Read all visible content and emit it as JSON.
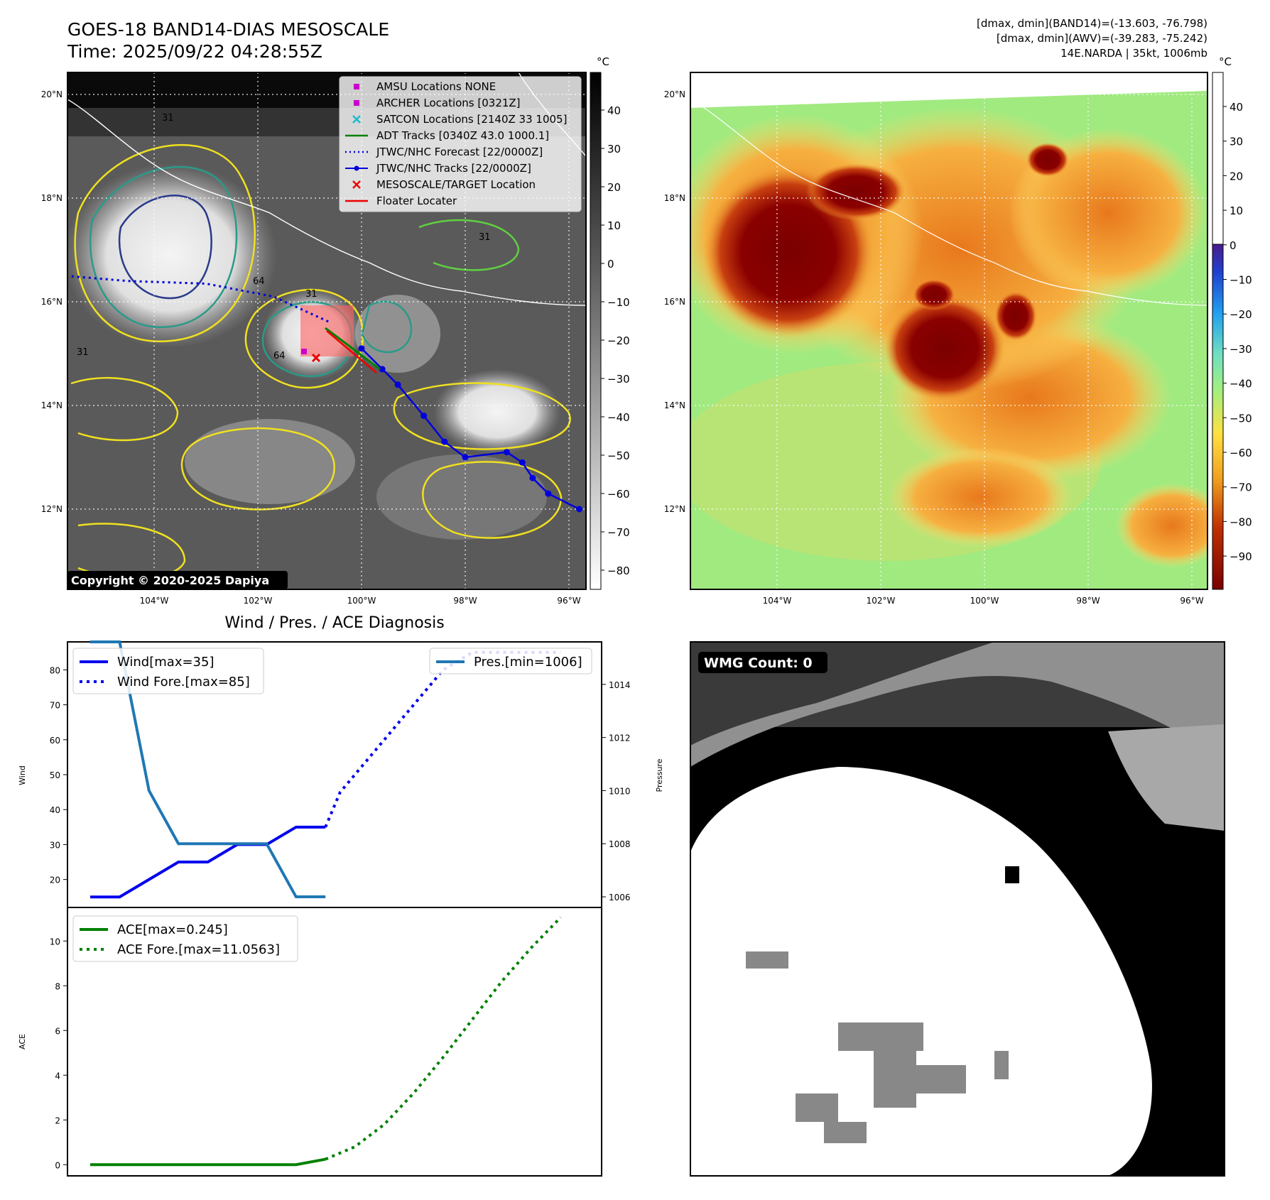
{
  "header": {
    "title": "GOES-18 BAND14-DIAS MESOSCALE",
    "time": "Time: 2025/09/22 04:28:55Z",
    "info_line1": "[dmax, dmin](BAND14)=(-13.603, -76.798)",
    "info_line2": "[dmax, dmin](AWV)=(-39.283, -75.242)",
    "info_line3": "14E.NARDA | 35kt, 1006mb",
    "copyright": "Copyright © 2020-2025 Dapiya"
  },
  "map": {
    "lat_labels": [
      "20°N",
      "18°N",
      "16°N",
      "14°N",
      "12°N"
    ],
    "lon_labels": [
      "104°W",
      "102°W",
      "100°W",
      "98°W",
      "96°W"
    ],
    "unit": "°C",
    "colorbar_left_ticks": [
      "40",
      "30",
      "20",
      "10",
      "0",
      "−10",
      "−20",
      "−30",
      "−40",
      "−50",
      "−60",
      "−70",
      "−80"
    ],
    "colorbar_right_ticks": [
      "40",
      "30",
      "20",
      "10",
      "0",
      "−10",
      "−20",
      "−30",
      "−40",
      "−50",
      "−60",
      "−70",
      "−80",
      "−90"
    ],
    "legend": [
      {
        "label": "AMSU Locations NONE",
        "marker": "square",
        "color": "#cc00cc"
      },
      {
        "label": "ARCHER Locations [0321Z]",
        "marker": "square",
        "color": "#cc00cc"
      },
      {
        "label": "SATCON Locations [2140Z 33 1005]",
        "marker": "x",
        "color": "#17becf"
      },
      {
        "label": "ADT Tracks [0340Z 43.0 1000.1]",
        "marker": "line",
        "color": "#008000"
      },
      {
        "label": "JTWC/NHC Forecast [22/0000Z]",
        "marker": "dotted",
        "color": "#0000dd"
      },
      {
        "label": "JTWC/NHC Tracks [22/0000Z]",
        "marker": "dotline",
        "color": "#0000dd"
      },
      {
        "label": "MESOSCALE/TARGET Location",
        "marker": "x",
        "color": "#ee0000"
      },
      {
        "label": "Floater Locater",
        "marker": "line",
        "color": "#ee0000"
      }
    ],
    "contour_labels": [
      "31",
      "64",
      "31",
      "64",
      "31",
      "31"
    ],
    "track_points": [
      [
        -100.0,
        15.1
      ],
      [
        -99.6,
        14.7
      ],
      [
        -99.3,
        14.4
      ],
      [
        -98.8,
        13.8
      ],
      [
        -98.4,
        13.3
      ],
      [
        -98.0,
        13.0
      ],
      [
        -97.2,
        13.1
      ],
      [
        -96.9,
        12.9
      ],
      [
        -96.7,
        12.6
      ],
      [
        -96.4,
        12.3
      ],
      [
        -95.8,
        12.0
      ]
    ],
    "forecast_points": [
      [
        -105.7,
        16.5
      ],
      [
        -104.5,
        16.4
      ],
      [
        -103.0,
        16.35
      ],
      [
        -101.7,
        16.1
      ],
      [
        -100.6,
        15.6
      ]
    ]
  },
  "diagnosis": {
    "title": "Wind / Pres. / ACE Diagnosis",
    "wind_ylabel": "Wind",
    "pressure_ylabel": "Pressure",
    "ace_ylabel": "ACE",
    "legend_wind": "Wind[max=35]",
    "legend_wind_fore": "Wind Fore.[max=85]",
    "legend_pres": "Pres.[min=1006]",
    "legend_ace": "ACE[max=0.245]",
    "legend_ace_fore": "ACE Fore.[max=11.0563]",
    "wind_ticks": [
      "80",
      "70",
      "60",
      "50",
      "40",
      "30",
      "20"
    ],
    "pres_ticks": [
      "1014",
      "1012",
      "1010",
      "1008",
      "1006"
    ],
    "ace_ticks": [
      "10",
      "8",
      "6",
      "4",
      "2",
      "0"
    ],
    "wmg_label": "WMG Count: 0"
  },
  "chart_data": [
    {
      "type": "line",
      "ylabel": "Wind",
      "ylim": [
        12,
        88
      ],
      "series": [
        {
          "name": "Wind[max=35]",
          "style": "solid",
          "color": "#0000ee",
          "x": [
            0,
            1,
            2,
            3,
            4,
            5,
            6,
            7,
            8
          ],
          "values": [
            15,
            15,
            20,
            25,
            25,
            30,
            30,
            35,
            35
          ]
        },
        {
          "name": "Wind Fore.[max=85]",
          "style": "dotted",
          "color": "#0000ee",
          "x": [
            8,
            8.5,
            9,
            10,
            11,
            12,
            13,
            14,
            15,
            16
          ],
          "values": [
            35,
            45,
            50,
            60,
            70,
            80,
            85,
            85,
            85,
            85
          ]
        }
      ]
    },
    {
      "type": "line",
      "ylabel": "Pressure",
      "ylim": [
        1005.6,
        1015.6
      ],
      "series": [
        {
          "name": "Pres.[min=1006]",
          "style": "solid",
          "color": "#1f77b4",
          "x": [
            0,
            1,
            2,
            3,
            4,
            5,
            6,
            7,
            8
          ],
          "values": [
            1016,
            1016,
            1010,
            1008,
            1008,
            1008,
            1008,
            1006,
            1006
          ]
        }
      ]
    },
    {
      "type": "line",
      "ylabel": "ACE",
      "ylim": [
        -0.5,
        11.5
      ],
      "series": [
        {
          "name": "ACE[max=0.245]",
          "style": "solid",
          "color": "#008000",
          "x": [
            0,
            7,
            8
          ],
          "values": [
            0,
            0,
            0.245
          ]
        },
        {
          "name": "ACE Fore.[max=11.0563]",
          "style": "dotted",
          "color": "#008000",
          "x": [
            8,
            9,
            10,
            11,
            12,
            13,
            14,
            15,
            16
          ],
          "values": [
            0.245,
            0.8,
            1.8,
            3.2,
            4.8,
            6.5,
            8.2,
            9.7,
            11.0563
          ]
        }
      ]
    }
  ]
}
